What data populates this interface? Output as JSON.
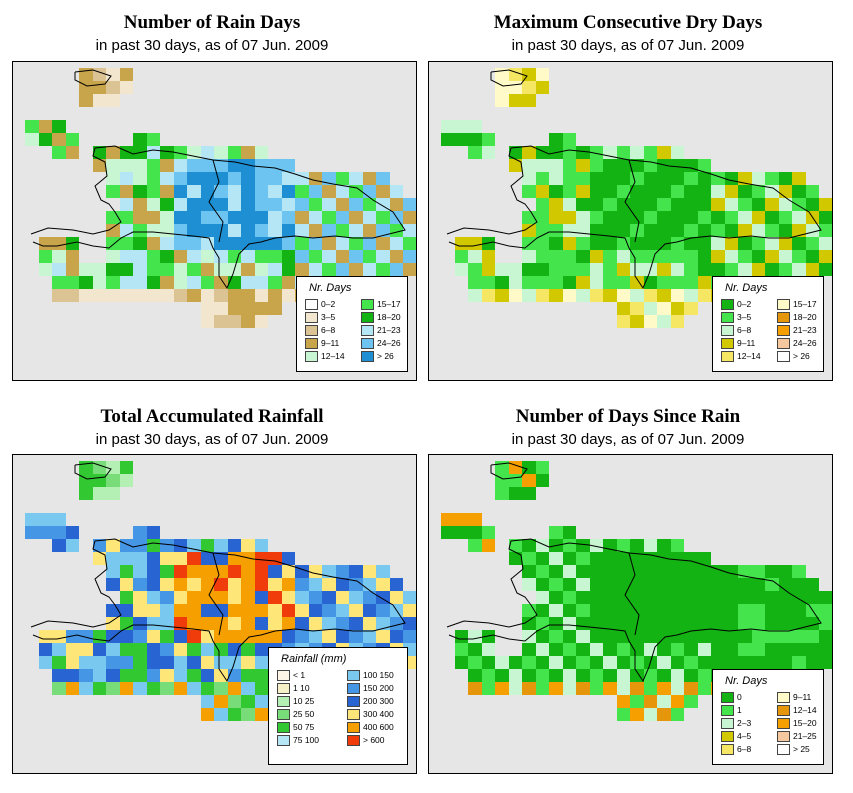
{
  "panels": [
    {
      "id": "rain-days",
      "title": "Number of Rain Days",
      "subtitle": "in past 30 days, as of  07 Jun. 2009",
      "legend": {
        "title": "Nr. Days",
        "items": [
          {
            "label": "0–2",
            "color": "#ffffff"
          },
          {
            "label": "3–5",
            "color": "#f2e6cf"
          },
          {
            "label": "6–8",
            "color": "#dcc394"
          },
          {
            "label": "9–11",
            "color": "#c8a44b"
          },
          {
            "label": "12–14",
            "color": "#c8f5d2"
          },
          {
            "label": "15–17",
            "color": "#44e44c"
          },
          {
            "label": "18–20",
            "color": "#12b312"
          },
          {
            "label": "21–23",
            "color": "#b4e6f5"
          },
          {
            "label": "24–26",
            "color": "#6ec4f0"
          },
          {
            "label": "> 26",
            "color": "#1e8fd2"
          }
        ]
      }
    },
    {
      "id": "dry-days",
      "title": "Maximum Consecutive Dry Days",
      "subtitle": "in past 30 days, as of  07 Jun. 2009",
      "legend": {
        "title": "Nr. Days",
        "items": [
          {
            "label": "0–2",
            "color": "#12b312"
          },
          {
            "label": "3–5",
            "color": "#44e44c"
          },
          {
            "label": "6–8",
            "color": "#c8f5d2"
          },
          {
            "label": "9–11",
            "color": "#d2c800"
          },
          {
            "label": "12–14",
            "color": "#f5e664"
          },
          {
            "label": "15–17",
            "color": "#fffac8"
          },
          {
            "label": "18–20",
            "color": "#e6960a"
          },
          {
            "label": "21–23",
            "color": "#f5a000"
          },
          {
            "label": "24–26",
            "color": "#f5c8a0"
          },
          {
            "label": "> 26",
            "color": "#ffffff"
          }
        ]
      }
    },
    {
      "id": "rainfall",
      "title": "Total Accumulated Rainfall",
      "subtitle": "in past 30 days, as of  07 Jun. 2009",
      "legend": {
        "title": "Rainfall (mm)",
        "items": [
          {
            "label": "< 1",
            "color": "#fff5e6"
          },
          {
            "label": "1   10",
            "color": "#f5f0c8"
          },
          {
            "label": "10   25",
            "color": "#b4f0b4"
          },
          {
            "label": "25   50",
            "color": "#78dc78"
          },
          {
            "label": "50   75",
            "color": "#32c832"
          },
          {
            "label": "75   100",
            "color": "#b4e6f5"
          },
          {
            "label": "100   150",
            "color": "#78c8f0"
          },
          {
            "label": "150   200",
            "color": "#4696e6"
          },
          {
            "label": "200   300",
            "color": "#2864d2"
          },
          {
            "label": "300   400",
            "color": "#ffe678"
          },
          {
            "label": "400   600",
            "color": "#f5a000"
          },
          {
            "label": "> 600",
            "color": "#f03c0a"
          }
        ]
      }
    },
    {
      "id": "days-since-rain",
      "title": "Number of Days Since Rain",
      "subtitle": "in past 30 days, as of  07 Jun. 2009",
      "legend": {
        "title": "Nr. Days",
        "items": [
          {
            "label": "0",
            "color": "#12b312"
          },
          {
            "label": "1",
            "color": "#44e44c"
          },
          {
            "label": "2–3",
            "color": "#c8f5d2"
          },
          {
            "label": "4–5",
            "color": "#d2c800"
          },
          {
            "label": "6–8",
            "color": "#f5e664"
          },
          {
            "label": "9–11",
            "color": "#fffac8"
          },
          {
            "label": "12–14",
            "color": "#e6960a"
          },
          {
            "label": "15–20",
            "color": "#f5a000"
          },
          {
            "label": "21–25",
            "color": "#f5c8a0"
          },
          {
            "label": "> 25",
            "color": "#ffffff"
          }
        ]
      }
    }
  ]
}
